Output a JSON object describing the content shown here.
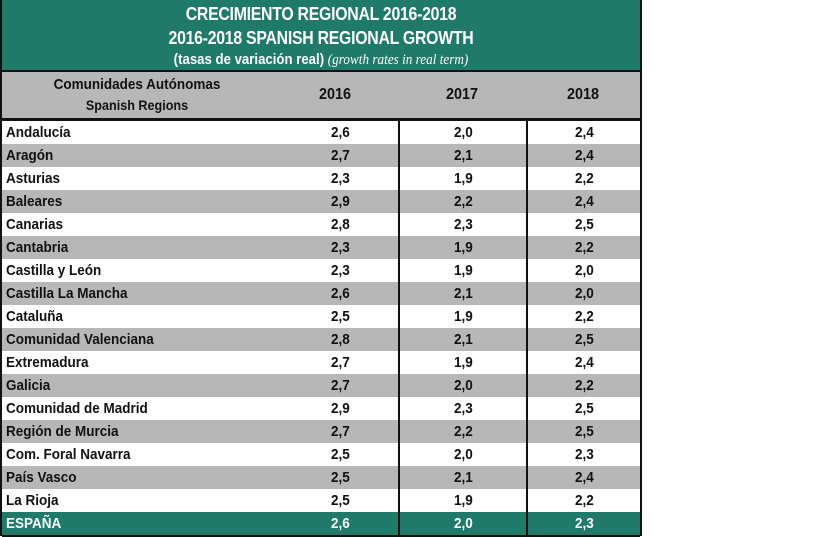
{
  "title": {
    "line1": "CRECIMIENTO REGIONAL 2016-2018",
    "line2": "2016-2018 SPANISH REGIONAL GROWTH",
    "subtitle_es": "(tasas de variación real)",
    "subtitle_en": "(growth rates in real term)"
  },
  "header": {
    "region_es": "Comunidades Autónomas",
    "region_en": "Spanish Regions",
    "years": [
      "2016",
      "2017",
      "2018"
    ]
  },
  "colors": {
    "accent_green": "#1f7a69",
    "stripe_grey": "#b7b7b7"
  },
  "rows": [
    {
      "region": "Andalucía",
      "v2016": "2,6",
      "v2017": "2,0",
      "v2018": "2,4"
    },
    {
      "region": "Aragón",
      "v2016": "2,7",
      "v2017": "2,1",
      "v2018": "2,4"
    },
    {
      "region": "Asturias",
      "v2016": "2,3",
      "v2017": "1,9",
      "v2018": "2,2"
    },
    {
      "region": "Baleares",
      "v2016": "2,9",
      "v2017": "2,2",
      "v2018": "2,4"
    },
    {
      "region": "Canarias",
      "v2016": "2,8",
      "v2017": "2,3",
      "v2018": "2,5"
    },
    {
      "region": "Cantabria",
      "v2016": "2,3",
      "v2017": "1,9",
      "v2018": "2,2"
    },
    {
      "region": "Castilla y León",
      "v2016": "2,3",
      "v2017": "1,9",
      "v2018": "2,0"
    },
    {
      "region": "Castilla La Mancha",
      "v2016": "2,6",
      "v2017": "2,1",
      "v2018": "2,0"
    },
    {
      "region": "Cataluña",
      "v2016": "2,5",
      "v2017": "1,9",
      "v2018": "2,2"
    },
    {
      "region": "Comunidad Valenciana",
      "v2016": "2,8",
      "v2017": "2,1",
      "v2018": "2,5"
    },
    {
      "region": "Extremadura",
      "v2016": "2,7",
      "v2017": "1,9",
      "v2018": "2,4"
    },
    {
      "region": "Galicia",
      "v2016": "2,7",
      "v2017": "2,0",
      "v2018": "2,2"
    },
    {
      "region": "Comunidad de Madrid",
      "v2016": "2,9",
      "v2017": "2,3",
      "v2018": "2,5"
    },
    {
      "region": "Región de Murcia",
      "v2016": "2,7",
      "v2017": "2,2",
      "v2018": "2,5"
    },
    {
      "region": "Com. Foral Navarra",
      "v2016": "2,5",
      "v2017": "2,0",
      "v2018": "2,3"
    },
    {
      "region": "País Vasco",
      "v2016": "2,5",
      "v2017": "2,1",
      "v2018": "2,4"
    },
    {
      "region": "La Rioja",
      "v2016": "2,5",
      "v2017": "1,9",
      "v2018": "2,2"
    }
  ],
  "total": {
    "region": "ESPAÑA",
    "v2016": "2,6",
    "v2017": "2,0",
    "v2018": "2,3"
  }
}
